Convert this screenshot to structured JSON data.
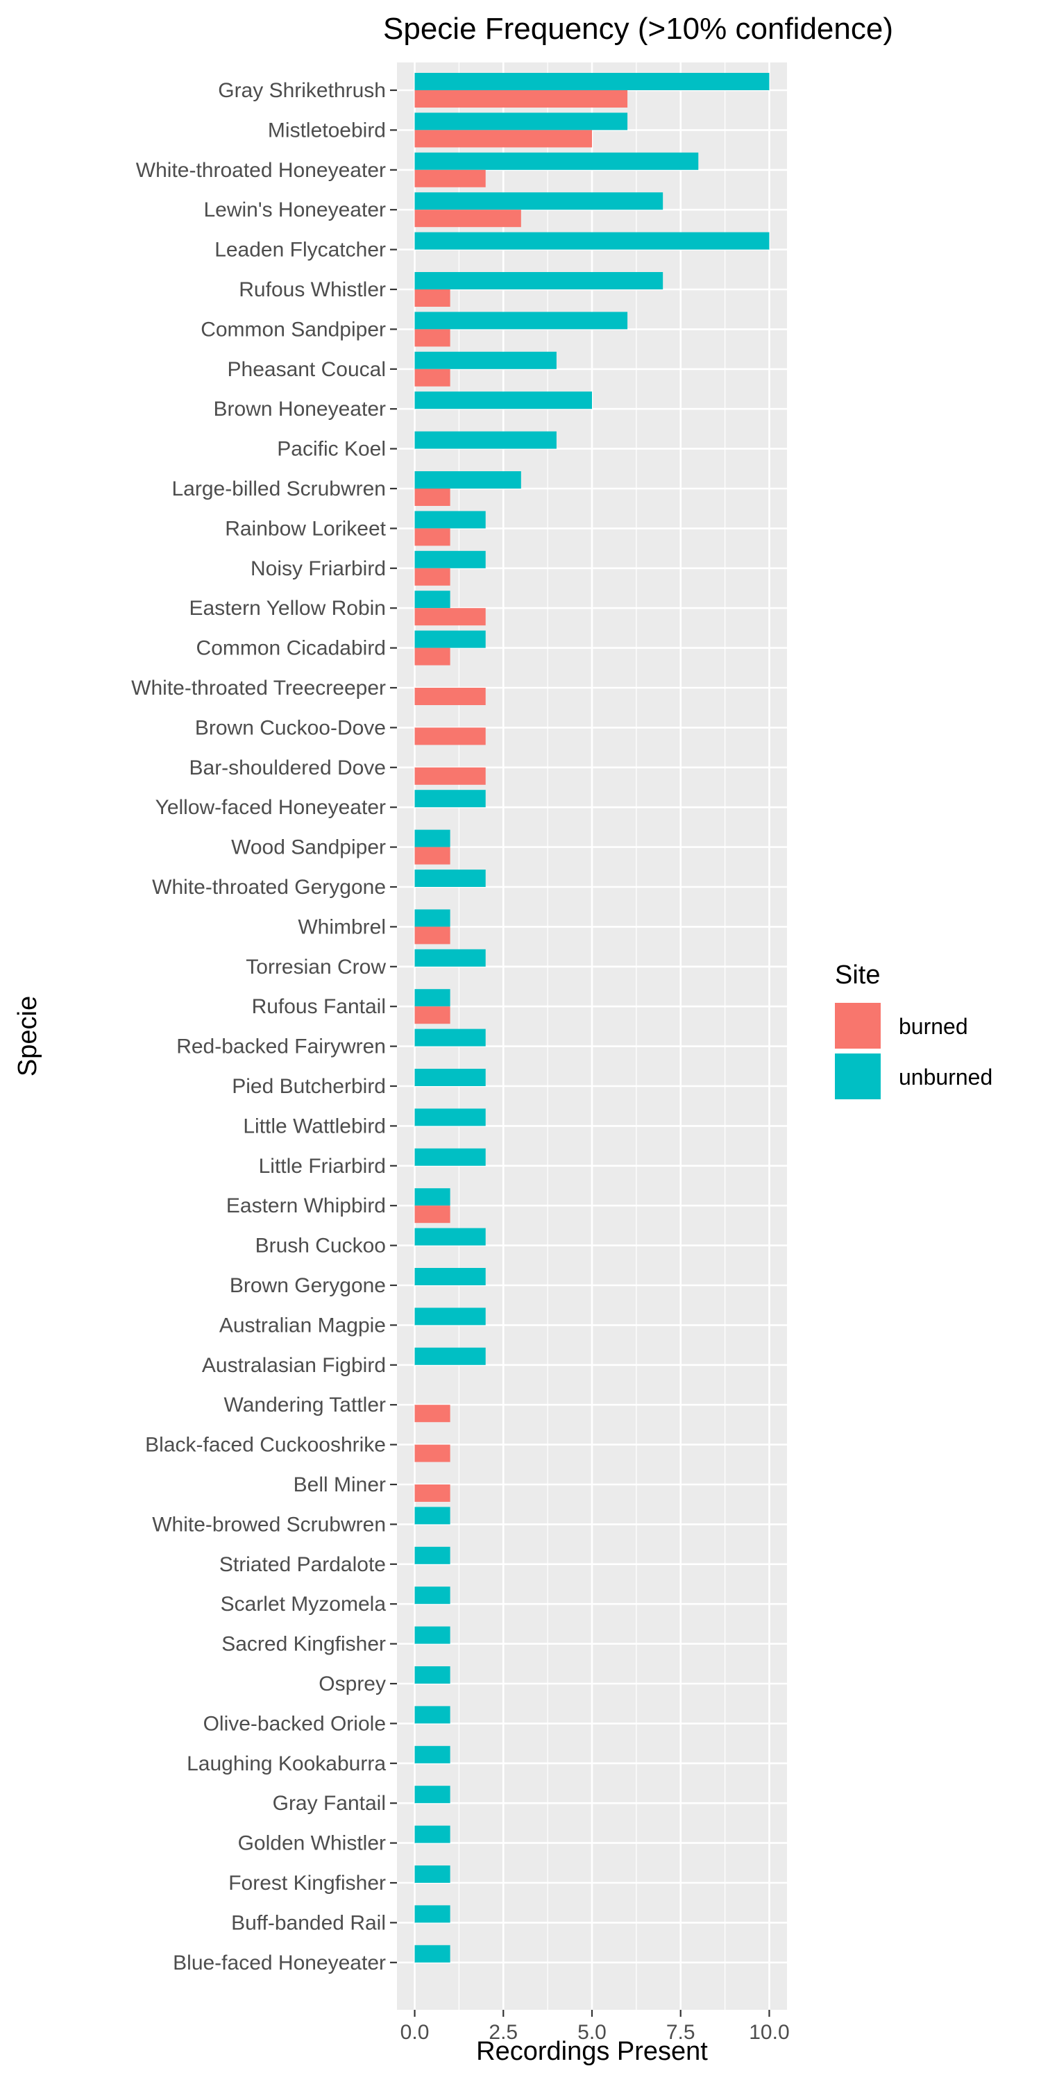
{
  "chart_data": {
    "type": "bar",
    "orientation": "horizontal",
    "title": "Specie Frequency (>10% confidence)",
    "xlabel": "Recordings Present",
    "ylabel": "Specie",
    "xlim": [
      -0.5,
      10.5
    ],
    "xticks": [
      0,
      2.5,
      5,
      7.5,
      10
    ],
    "xtick_labels": [
      "0.0",
      "2.5",
      "5.0",
      "7.5",
      "10.0"
    ],
    "grid": true,
    "legend": {
      "title": "Site",
      "position": "right",
      "entries": [
        {
          "name": "burned",
          "color": "#F8766D"
        },
        {
          "name": "unburned",
          "color": "#00BFC4"
        }
      ]
    },
    "categories": [
      "Gray Shrikethrush",
      "Mistletoebird",
      "White-throated Honeyeater",
      "Lewin's Honeyeater",
      "Leaden Flycatcher",
      "Rufous Whistler",
      "Common Sandpiper",
      "Pheasant Coucal",
      "Brown Honeyeater",
      "Pacific Koel",
      "Large-billed Scrubwren",
      "Rainbow Lorikeet",
      "Noisy Friarbird",
      "Eastern Yellow Robin",
      "Common Cicadabird",
      "White-throated Treecreeper",
      "Brown Cuckoo-Dove",
      "Bar-shouldered Dove",
      "Yellow-faced Honeyeater",
      "Wood Sandpiper",
      "White-throated Gerygone",
      "Whimbrel",
      "Torresian Crow",
      "Rufous Fantail",
      "Red-backed Fairywren",
      "Pied Butcherbird",
      "Little Wattlebird",
      "Little Friarbird",
      "Eastern Whipbird",
      "Brush Cuckoo",
      "Brown Gerygone",
      "Australian Magpie",
      "Australasian Figbird",
      "Wandering Tattler",
      "Black-faced Cuckooshrike",
      "Bell Miner",
      "White-browed Scrubwren",
      "Striated Pardalote",
      "Scarlet Myzomela",
      "Sacred Kingfisher",
      "Osprey",
      "Olive-backed Oriole",
      "Laughing Kookaburra",
      "Gray Fantail",
      "Golden Whistler",
      "Forest Kingfisher",
      "Buff-banded Rail",
      "Blue-faced Honeyeater"
    ],
    "series": [
      {
        "name": "burned",
        "color": "#F8766D",
        "values": [
          6,
          5,
          2,
          3,
          null,
          1,
          1,
          1,
          null,
          null,
          1,
          1,
          1,
          2,
          1,
          2,
          2,
          2,
          null,
          1,
          null,
          1,
          null,
          1,
          null,
          null,
          null,
          null,
          1,
          null,
          null,
          null,
          null,
          1,
          1,
          1,
          null,
          null,
          null,
          null,
          null,
          null,
          null,
          null,
          null,
          null,
          null,
          null
        ]
      },
      {
        "name": "unburned",
        "color": "#00BFC4",
        "values": [
          10,
          6,
          8,
          7,
          10,
          7,
          6,
          4,
          5,
          4,
          3,
          2,
          2,
          1,
          2,
          null,
          null,
          null,
          2,
          1,
          2,
          1,
          2,
          1,
          2,
          2,
          2,
          2,
          1,
          2,
          2,
          2,
          2,
          null,
          null,
          null,
          1,
          1,
          1,
          1,
          1,
          1,
          1,
          1,
          1,
          1,
          1,
          1
        ]
      }
    ]
  },
  "colors": {
    "panel_bg": "#EBEBEB",
    "grid_major": "#FFFFFF",
    "tick_text": "#4D4D4D",
    "axis_text": "#000000"
  }
}
